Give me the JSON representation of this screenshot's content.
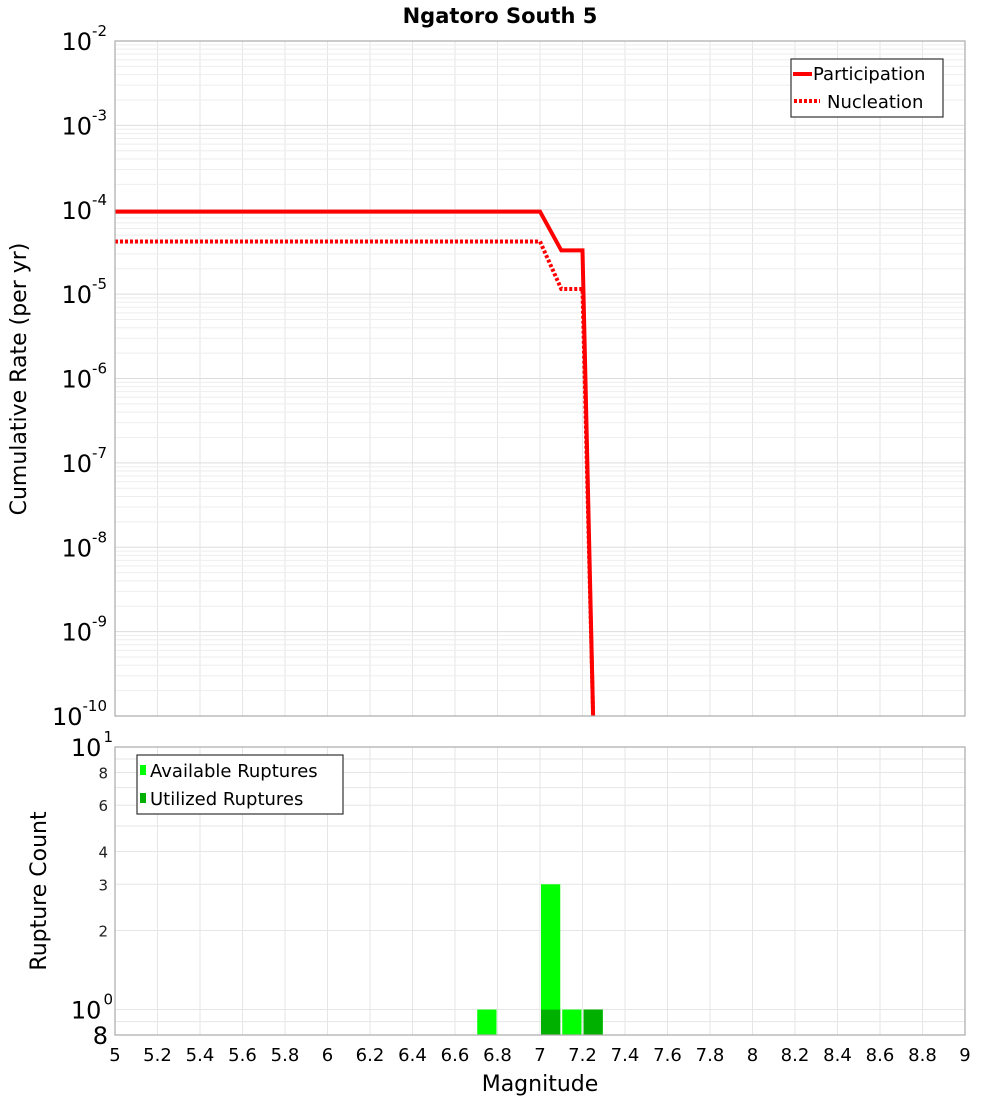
{
  "chart_data": [
    {
      "type": "line",
      "title": "Ngatoro South 5",
      "xlabel": "Magnitude",
      "ylabel": "Cumulative Rate (per yr)",
      "yscale": "log",
      "xlim": [
        5,
        9
      ],
      "ylim": [
        1e-10,
        0.01
      ],
      "grid": true,
      "legend_position": "top-right",
      "y_ticks": [
        {
          "base": "10",
          "exp": "-2",
          "value": 0.01
        },
        {
          "base": "10",
          "exp": "-3",
          "value": 0.001
        },
        {
          "base": "10",
          "exp": "-4",
          "value": 0.0001
        },
        {
          "base": "10",
          "exp": "-5",
          "value": 1e-05
        },
        {
          "base": "10",
          "exp": "-6",
          "value": 1e-06
        },
        {
          "base": "10",
          "exp": "-7",
          "value": 1e-07
        },
        {
          "base": "10",
          "exp": "-8",
          "value": 1e-08
        },
        {
          "base": "10",
          "exp": "-9",
          "value": 1e-09
        },
        {
          "base": "10",
          "exp": "-10",
          "value": 1e-10
        }
      ],
      "series": [
        {
          "name": "Participation",
          "style": "solid",
          "color": "#ff0000",
          "x": [
            5.0,
            7.0,
            7.1,
            7.2,
            7.25
          ],
          "y": [
            9.5e-05,
            9.5e-05,
            3.3e-05,
            3.3e-05,
            1e-10
          ]
        },
        {
          "name": "Nucleation",
          "style": "dotted",
          "color": "#ff0000",
          "x": [
            5.0,
            7.0,
            7.1,
            7.2,
            7.25
          ],
          "y": [
            4.2e-05,
            4.2e-05,
            1.15e-05,
            1.15e-05,
            1e-10
          ]
        }
      ]
    },
    {
      "type": "bar",
      "title": "",
      "xlabel": "Magnitude",
      "ylabel": "Rupture Count",
      "yscale": "log",
      "xlim": [
        5,
        9
      ],
      "ylim": [
        0.8,
        10
      ],
      "grid": true,
      "legend_position": "top-left",
      "y_ticks": [
        {
          "label": "10",
          "exp": "1",
          "value": 10
        },
        {
          "label": "8",
          "value": 8
        },
        {
          "label": "6",
          "value": 6
        },
        {
          "label": "4",
          "value": 4
        },
        {
          "label": "3",
          "value": 3
        },
        {
          "label": "2",
          "value": 2
        },
        {
          "label": "10",
          "exp": "0",
          "value": 1
        },
        {
          "label": "8",
          "value": 0.8
        }
      ],
      "categories": [
        6.75,
        7.05,
        7.15,
        7.25
      ],
      "series": [
        {
          "name": "Available Ruptures",
          "color": "#00ff00",
          "values": [
            1,
            3,
            1,
            1
          ]
        },
        {
          "name": "Utilized Ruptures",
          "color": "#00b000",
          "values": [
            0,
            1,
            0,
            1
          ]
        }
      ]
    }
  ],
  "x_ticks": [
    "5",
    "5.2",
    "5.4",
    "5.6",
    "5.8",
    "6",
    "6.2",
    "6.4",
    "6.6",
    "6.8",
    "7",
    "7.2",
    "7.4",
    "7.6",
    "7.8",
    "8",
    "8.2",
    "8.4",
    "8.6",
    "8.8",
    "9"
  ],
  "labels": {
    "title": "Ngatoro South 5",
    "top_ylabel": "Cumulative Rate (per yr)",
    "bottom_ylabel": "Rupture Count",
    "xlabel": "Magnitude",
    "legend_top": [
      "Participation",
      "Nucleation"
    ],
    "legend_bottom": [
      "Available Ruptures",
      "Utilized Ruptures"
    ]
  },
  "colors": {
    "line": "#ff0000",
    "available": "#00ff00",
    "utilized": "#00b000",
    "grid": "#e6e6e6",
    "frame": "#aaaaaa"
  }
}
